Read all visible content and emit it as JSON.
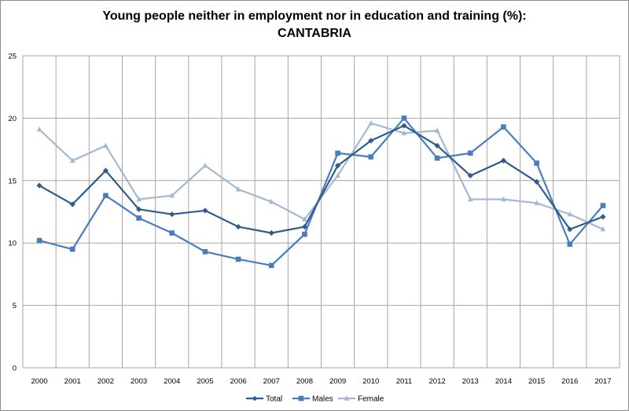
{
  "chart_data": {
    "type": "line",
    "title_line1": "Young people neither in employment nor in education and training  (%):",
    "title_line2": "CANTABRIA",
    "xlabel": "",
    "ylabel": "",
    "ylim": [
      0,
      25
    ],
    "yticks": [
      "0",
      "5",
      "10",
      "15",
      "20",
      "25"
    ],
    "grid": true,
    "legend_position": "bottom",
    "x": [
      "2000",
      "2001",
      "2002",
      "2003",
      "2004",
      "2005",
      "2006",
      "2007",
      "2008",
      "2009",
      "2010",
      "2011",
      "2012",
      "2013",
      "2014",
      "2015",
      "2016",
      "2017"
    ],
    "series": [
      {
        "name": "Total",
        "color": "#2f5c8a",
        "marker": "diamond",
        "values": [
          14.6,
          13.1,
          15.8,
          12.7,
          12.3,
          12.6,
          11.3,
          10.8,
          11.3,
          16.2,
          18.2,
          19.4,
          17.8,
          15.4,
          16.6,
          14.9,
          11.1,
          12.1
        ]
      },
      {
        "name": "Males",
        "color": "#4a7ebb",
        "marker": "square",
        "values": [
          10.2,
          9.5,
          13.8,
          12.0,
          10.8,
          9.3,
          8.7,
          8.2,
          10.7,
          17.2,
          16.9,
          20.0,
          16.8,
          17.2,
          19.3,
          16.4,
          9.9,
          13.0
        ]
      },
      {
        "name": "Female",
        "color": "#a5b8d3",
        "marker": "triangle",
        "values": [
          19.1,
          16.6,
          17.8,
          13.5,
          13.8,
          16.2,
          14.3,
          13.3,
          11.9,
          15.4,
          19.6,
          18.8,
          19.0,
          13.5,
          13.5,
          13.2,
          12.3,
          11.1
        ]
      }
    ]
  }
}
